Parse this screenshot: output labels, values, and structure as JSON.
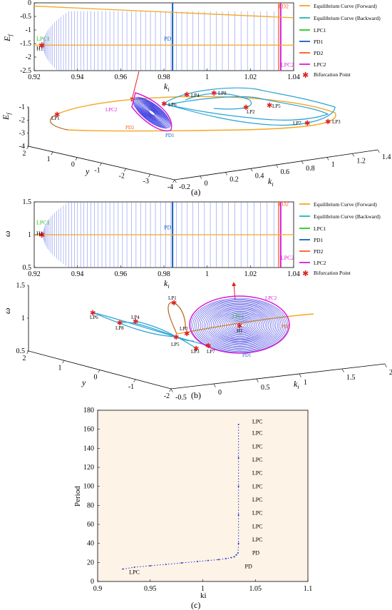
{
  "legend": {
    "forward": "Equilibrium Curve (Forward)",
    "backward": "Equilibrium Curve (Backward)",
    "lpc1": "LPC1",
    "pd1": "PD1",
    "pd2": "PD2",
    "lpc2": "LPC2",
    "bif": "Bifurcation Point"
  },
  "colors": {
    "forward": "#f5a623",
    "backward": "#1fb8b0",
    "lpc1": "#22cc22",
    "pd1": "#1560bd",
    "pd2": "#ff5a1f",
    "lpc2": "#d81bd8",
    "bif": "#e02020",
    "cycle": "#2222dd",
    "orbit": "#2aa3d6",
    "period_bg": "#fdf3e6",
    "period_line": "#2233cc"
  },
  "captions": {
    "a": "(a)",
    "b": "(b)",
    "c": "(c)"
  },
  "chart_data": [
    {
      "id": "a-top",
      "type": "line",
      "xlabel": "k_i",
      "ylabel": "E_f",
      "xlim": [
        0.92,
        1.04
      ],
      "ylim": [
        -2.5,
        0
      ],
      "xticks": [
        "0.92",
        "0.94",
        "0.96",
        "0.98",
        "1",
        "1.02",
        "1.04"
      ],
      "yticks": [
        "-2.5",
        "-2",
        "-1.5",
        "-1",
        "-0.5",
        "0"
      ],
      "forward_line": [
        [
          0.92,
          -0.12
        ],
        [
          1.04,
          -0.55
        ]
      ],
      "backward_line": [
        [
          0.92,
          -1.56
        ],
        [
          1.04,
          -1.56
        ]
      ],
      "pd1_x": 0.984,
      "lpc2_x": 1.034,
      "h1": [
        0.924,
        -1.56
      ],
      "labels": [
        {
          "text": "PD2",
          "x": 1.033,
          "y": -0.2,
          "color": "pd2"
        },
        {
          "text": "LPC1",
          "x": 0.921,
          "y": -1.4,
          "color": "lpc1"
        },
        {
          "text": "H1",
          "x": 0.921,
          "y": -1.75,
          "color": "text"
        },
        {
          "text": "PD1",
          "x": 0.98,
          "y": -1.4,
          "color": "pd1"
        },
        {
          "text": "LPC2",
          "x": 1.034,
          "y": -2.35,
          "color": "lpc2"
        }
      ]
    },
    {
      "id": "a-3d",
      "type": "scatter",
      "xlabel": "k_i",
      "ylabel": "y",
      "zlabel": "E_f",
      "xticks": [
        "-0.2",
        "0",
        "0.2",
        "0.4",
        "0.6",
        "0.8",
        "1",
        "1.2",
        "1.4"
      ],
      "yticks": [
        "2",
        "1",
        "0",
        "-1",
        "-2",
        "-3",
        "-4"
      ],
      "zticks": [
        "-1",
        "-2",
        "-3",
        "-4"
      ],
      "points": [
        "LP1",
        "LPC2",
        "PD2",
        "LP6",
        "PD1",
        "LP4",
        "LP8",
        "LP2",
        "LP5",
        "LP7",
        "LP3",
        "PD1"
      ]
    },
    {
      "id": "b-top",
      "type": "line",
      "xlabel": "k_i",
      "ylabel": "ω",
      "xlim": [
        0.92,
        1.04
      ],
      "ylim": [
        0.5,
        1.5
      ],
      "xticks": [
        "0.92",
        "0.94",
        "0.96",
        "0.98",
        "1",
        "1.02",
        "1.04"
      ],
      "yticks": [
        "0.5",
        "1",
        "1.5"
      ],
      "forward_line": [
        [
          0.92,
          1.0
        ],
        [
          1.04,
          1.0
        ]
      ],
      "pd1_x": 0.984,
      "lpc2_x": 1.034,
      "h1": [
        0.924,
        1.0
      ],
      "labels": [
        {
          "text": "PD2",
          "x": 1.033,
          "y": 1.44,
          "color": "pd2"
        },
        {
          "text": "LPC1",
          "x": 0.921,
          "y": 1.16,
          "color": "lpc1"
        },
        {
          "text": "H1",
          "x": 0.921,
          "y": 0.99,
          "color": "text"
        },
        {
          "text": "PD1",
          "x": 0.98,
          "y": 1.08,
          "color": "pd1"
        },
        {
          "text": "LPC2",
          "x": 1.034,
          "y": 0.62,
          "color": "lpc2"
        }
      ]
    },
    {
      "id": "b-3d",
      "type": "scatter",
      "xlabel": "k_i",
      "ylabel": "y",
      "zlabel": "ω",
      "xticks": [
        "-0.5",
        "0",
        "0.5",
        "1",
        "1.5",
        "2"
      ],
      "yticks": [
        "2",
        "1",
        "0",
        "-1",
        "-2"
      ],
      "zticks": [
        "1.5",
        "1",
        "0.5"
      ],
      "points": [
        "LP1",
        "LP6",
        "LP4",
        "LP8",
        "LP2",
        "LP5",
        "LP3",
        "LP7",
        "LPC2",
        "LPC1",
        "H1",
        "PD2",
        "PD1"
      ]
    },
    {
      "id": "c",
      "type": "line",
      "xlabel": "ki",
      "ylabel": "Period",
      "xlim": [
        0.9,
        1.1
      ],
      "ylim": [
        0,
        180
      ],
      "xticks": [
        "0.9",
        "0.95",
        "1",
        "1.05",
        "1.1"
      ],
      "yticks": [
        "0",
        "20",
        "40",
        "60",
        "80",
        "100",
        "120",
        "140",
        "160",
        "180"
      ],
      "series": [
        {
          "x": [
            0.924,
            0.935,
            0.95,
            0.965,
            0.98,
            0.995,
            1.005,
            1.015,
            1.022,
            1.027,
            1.03,
            1.032,
            1.0335,
            1.034,
            1.034,
            1.034,
            1.034,
            1.034
          ],
          "y": [
            13,
            15,
            16.5,
            18,
            19.5,
            21,
            22,
            23,
            24,
            25,
            26,
            28,
            30,
            40,
            70,
            100,
            130,
            165
          ]
        }
      ],
      "labels": [
        {
          "text": "LPC",
          "x": 0.93,
          "y": 8
        },
        {
          "text": "PD",
          "x": 1.04,
          "y": 14
        },
        {
          "text": "PD",
          "x": 1.047,
          "y": 28
        },
        {
          "text": "LPC",
          "x": 1.047,
          "y": 42
        },
        {
          "text": "LPC",
          "x": 1.047,
          "y": 56
        },
        {
          "text": "LPC",
          "x": 1.047,
          "y": 70
        },
        {
          "text": "LPC",
          "x": 1.047,
          "y": 84
        },
        {
          "text": "LPC",
          "x": 1.047,
          "y": 98
        },
        {
          "text": "LPC",
          "x": 1.047,
          "y": 112
        },
        {
          "text": "LPC",
          "x": 1.047,
          "y": 126
        },
        {
          "text": "LPC",
          "x": 1.047,
          "y": 140
        },
        {
          "text": "LPC",
          "x": 1.047,
          "y": 154
        },
        {
          "text": "LPC",
          "x": 1.047,
          "y": 166
        }
      ]
    }
  ]
}
